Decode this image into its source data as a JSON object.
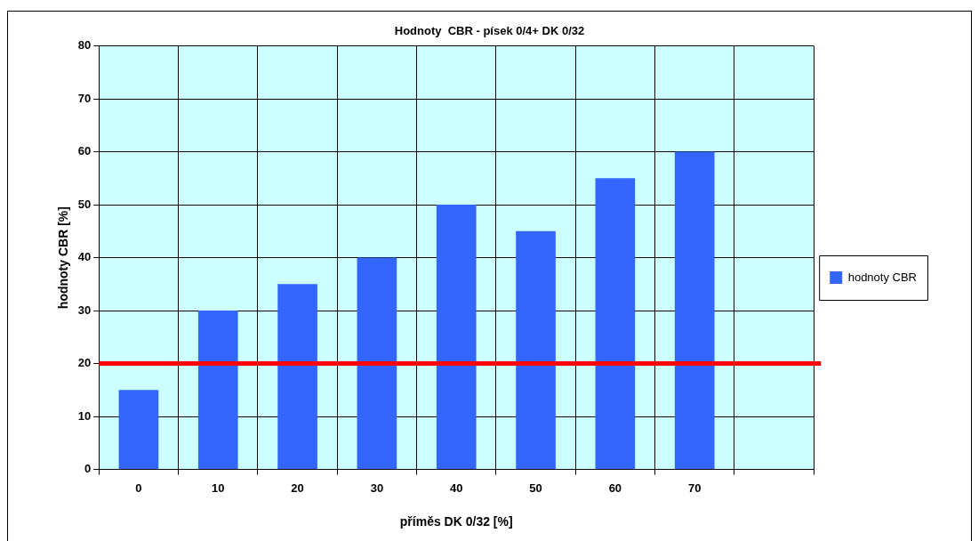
{
  "chart_data": {
    "type": "bar",
    "title": "Hodnoty  CBR - písek 0/4+ DK 0/32",
    "xlabel": "příměs DK 0/32 [%]",
    "ylabel": "hodnoty CBR [%]",
    "categories": [
      "0",
      "10",
      "20",
      "30",
      "40",
      "50",
      "60",
      "70",
      null
    ],
    "series": [
      {
        "name": "hodnoty CBR",
        "color": "#3366ff",
        "values": [
          15,
          30,
          35,
          40,
          50,
          45,
          55,
          60,
          null
        ]
      }
    ],
    "ylim": [
      0,
      80
    ],
    "yticks": [
      0,
      10,
      20,
      30,
      40,
      50,
      60,
      70,
      80
    ],
    "grid": true,
    "legend": "right",
    "ref_lines": [
      {
        "axis": "y",
        "value": 20,
        "color": "#ff0000",
        "line_style": "solid"
      }
    ]
  }
}
